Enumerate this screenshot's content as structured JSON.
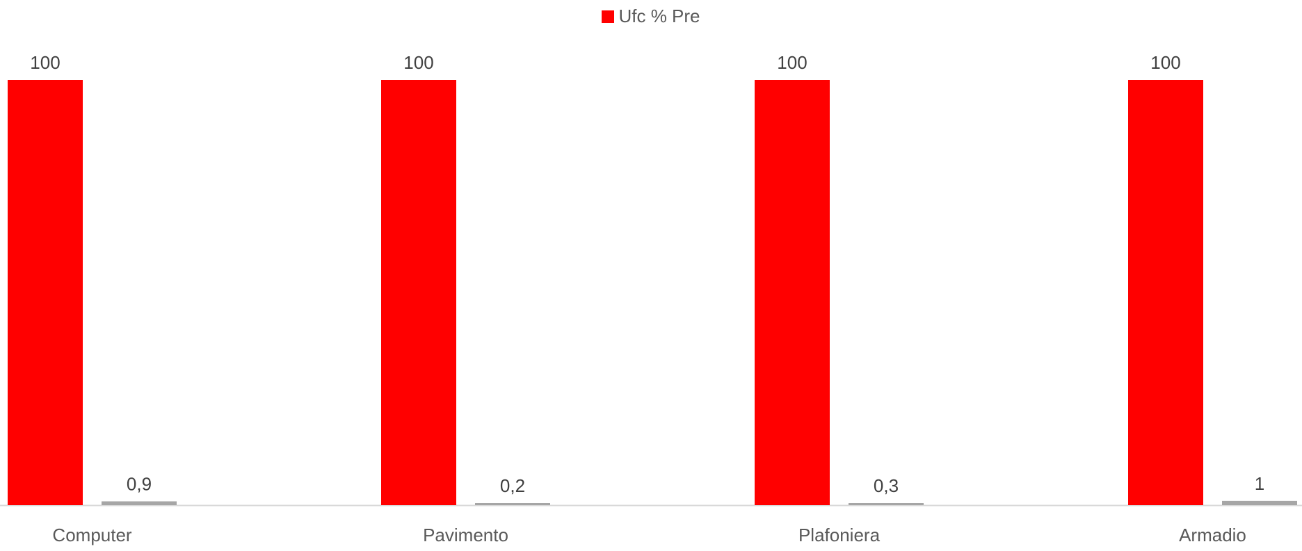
{
  "chart_data": {
    "type": "bar",
    "categories": [
      "Computer",
      "Pavimento",
      "Plafoniera",
      "Armadio"
    ],
    "series": [
      {
        "name": "Ufc % Pre",
        "values": [
          100,
          100,
          100,
          100
        ],
        "labels": [
          "100",
          "100",
          "100",
          "100"
        ],
        "color": "#FF0000"
      },
      {
        "name": "",
        "values": [
          0.9,
          0.2,
          0.3,
          1
        ],
        "labels": [
          "0,9",
          "0,2",
          "0,3",
          "1"
        ],
        "color": "#A6A6A6"
      }
    ],
    "title": "",
    "xlabel": "",
    "ylabel": "",
    "ylim": [
      0,
      100
    ],
    "grid": false,
    "legend": "top-center",
    "axis_color": "#D9D9D9",
    "label_color": "#404040"
  }
}
